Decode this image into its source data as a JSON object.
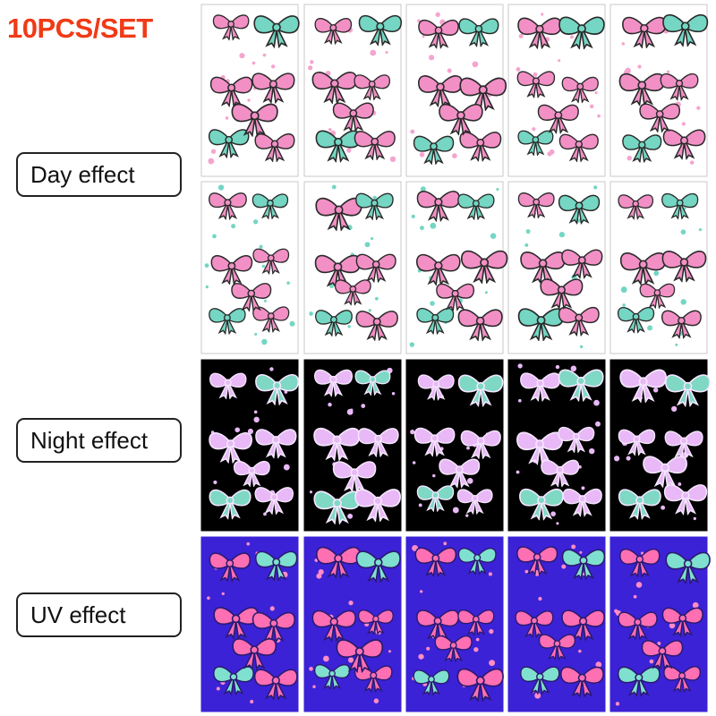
{
  "header": {
    "title": "10PCS/SET"
  },
  "labels": [
    "Day effect",
    "Night effect",
    "UV effect"
  ]
}
